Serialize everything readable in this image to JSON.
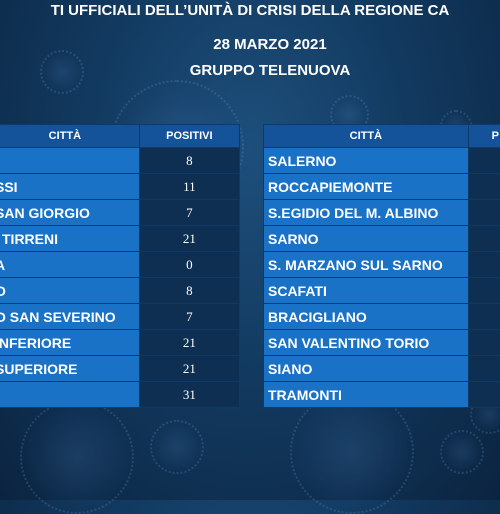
{
  "header": {
    "line1": "TI UFFICIALI DELL’UNITÀ DI CRISI DELLA REGIONE CA",
    "line2": "28 MARZO 2021",
    "line3": "GRUPPO TELENUOVA"
  },
  "left_table": {
    "col_city": "CITTÀ",
    "col_positivi": "POSITIVI",
    "rows": [
      {
        "city": "",
        "positivi": "8"
      },
      {
        "city": "SSI",
        "positivi": "11"
      },
      {
        "city": "SAN GIORGIO",
        "positivi": "7"
      },
      {
        "city": "’ TIRRENI",
        "positivi": "21"
      },
      {
        "city": "A",
        "positivi": "0"
      },
      {
        "city": "O",
        "positivi": "8"
      },
      {
        "city": "O SAN SEVERINO",
        "positivi": "7"
      },
      {
        "city": "INFERIORE",
        "positivi": "21"
      },
      {
        "city": "SUPERIORE",
        "positivi": "21"
      },
      {
        "city": "",
        "positivi": "31"
      }
    ]
  },
  "right_table": {
    "col_city": "CITTÀ",
    "col_positivi": "P",
    "rows": [
      {
        "city": "SALERNO",
        "positivi": ""
      },
      {
        "city": "ROCCAPIEMONTE",
        "positivi": ""
      },
      {
        "city": "S.EGIDIO DEL M. ALBINO",
        "positivi": ""
      },
      {
        "city": "SARNO",
        "positivi": ""
      },
      {
        "city": "S. MARZANO SUL SARNO",
        "positivi": ""
      },
      {
        "city": "SCAFATI",
        "positivi": ""
      },
      {
        "city": "BRACIGLIANO",
        "positivi": ""
      },
      {
        "city": "SAN VALENTINO TORIO",
        "positivi": ""
      },
      {
        "city": "SIANO",
        "positivi": ""
      },
      {
        "city": "TRAMONTI",
        "positivi": ""
      }
    ]
  }
}
